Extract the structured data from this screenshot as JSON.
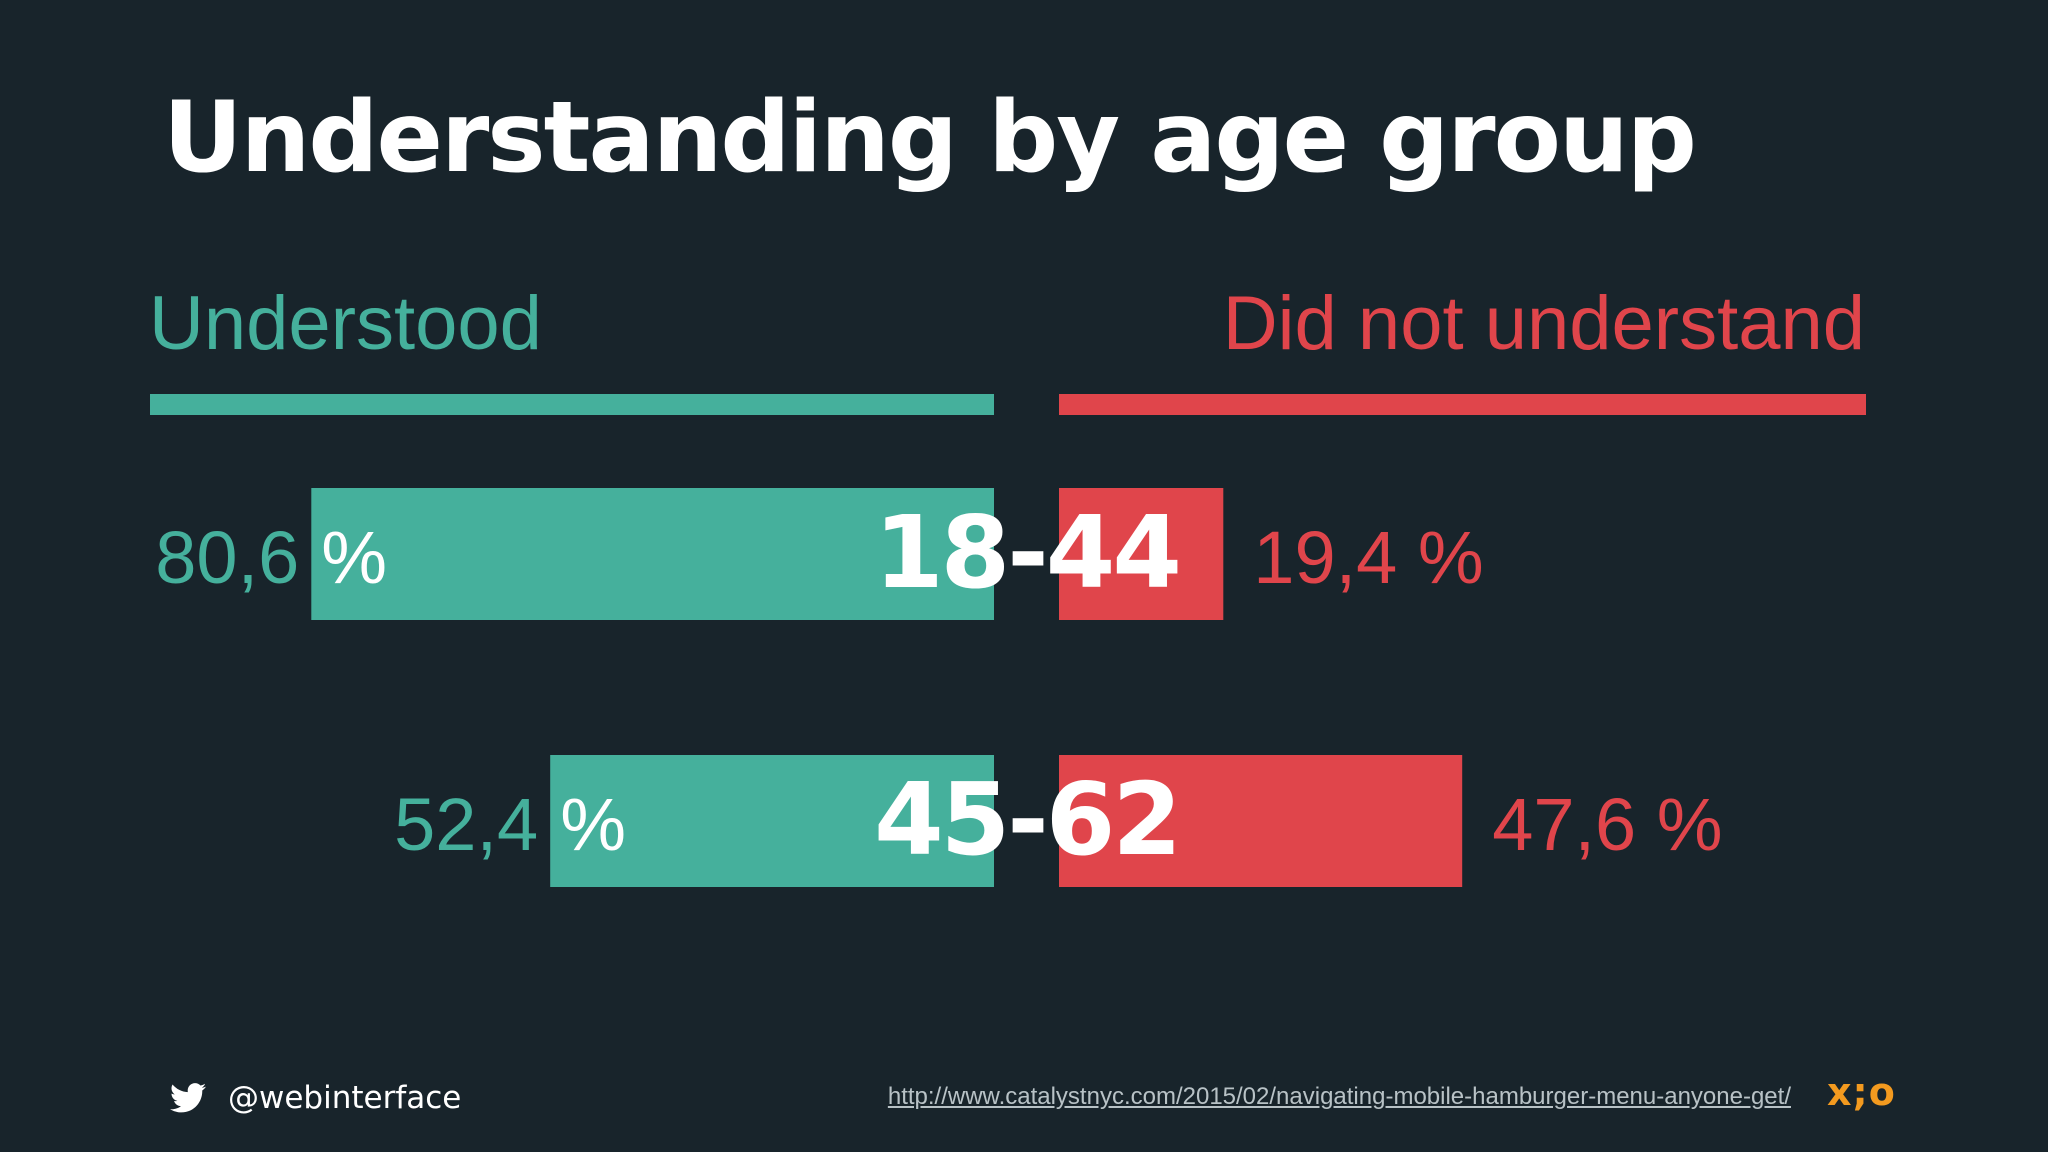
{
  "slide": {
    "title": "Understanding by age group",
    "legend_left": "Understood",
    "legend_right": "Did not understand",
    "twitter_handle": "@webinterface",
    "source_url": "http://www.catalystnyc.com/2015/02/navigating-mobile-hamburger-menu-anyone-get/",
    "logo_text": "x;o"
  },
  "colors": {
    "background": "#18242b",
    "understood": "#45b09c",
    "not_understood": "#e0454b",
    "logo": "#f39a1f"
  },
  "icons": {
    "twitter": "twitter-bird-icon"
  },
  "chart_data": {
    "type": "bar",
    "orientation": "horizontal-diverging",
    "title": "Understanding by age group",
    "categories": [
      "18-44",
      "45-62"
    ],
    "series": [
      {
        "name": "Understood",
        "values": [
          80.6,
          52.4
        ],
        "labels": [
          "80,6 %",
          "52,4 %"
        ]
      },
      {
        "name": "Did not understand",
        "values": [
          19.4,
          47.6
        ],
        "labels": [
          "19,4 %",
          "47,6 %"
        ]
      }
    ],
    "xlim": [
      0,
      100
    ],
    "grid": false
  }
}
